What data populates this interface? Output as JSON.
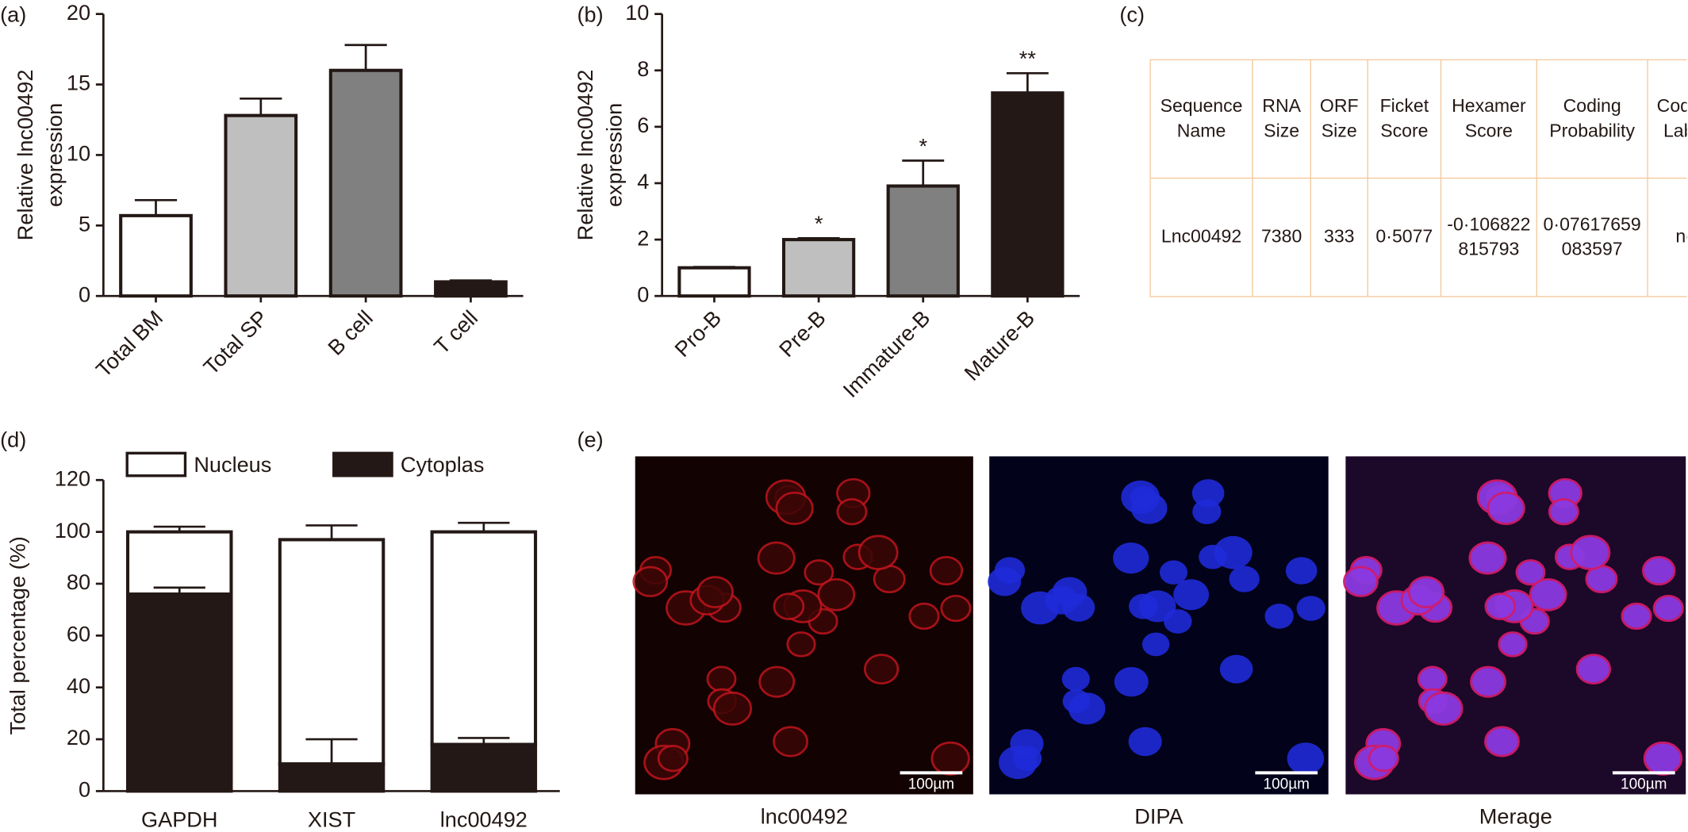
{
  "chart_data": [
    {
      "type": "bar",
      "panel": "(a)",
      "y_label": [
        "Relative lnc00492",
        "expression"
      ],
      "categories": [
        "Total BM",
        "Total SP",
        "B cell",
        "T cell"
      ],
      "values": [
        5.7,
        12.8,
        16,
        1.0
      ],
      "errors": [
        1.1,
        1.2,
        1.8,
        0.1
      ],
      "colors": [
        "#ffffff",
        "#bfbfbf",
        "#808080",
        "#231815"
      ],
      "ylim": [
        0,
        20
      ],
      "yticks": [
        0,
        5,
        10,
        15,
        20
      ]
    },
    {
      "type": "bar",
      "panel": "(b)",
      "y_label": [
        "Relative lnc00492",
        "expression"
      ],
      "categories": [
        "Pro-B",
        "Pre-B",
        "Immature-B",
        "Mature-B"
      ],
      "values": [
        1.0,
        2.0,
        3.9,
        7.2
      ],
      "errors": [
        0.03,
        0.05,
        0.9,
        0.7
      ],
      "annotations": [
        null,
        "*",
        "*",
        "**"
      ],
      "colors": [
        "#ffffff",
        "#bfbfbf",
        "#808080",
        "#231815"
      ],
      "ylim": [
        0,
        10
      ],
      "yticks": [
        0,
        2,
        4,
        6,
        8,
        10
      ]
    },
    {
      "type": "stacked_bar",
      "panel": "(d)",
      "y_label": "Total percentage (%)",
      "categories": [
        "GAPDH",
        "XIST",
        "lnc00492"
      ],
      "series": [
        {
          "name": "Cytoplas",
          "color": "#231815",
          "values": [
            76,
            10.5,
            18
          ],
          "errors": [
            2.5,
            9.5,
            2.5
          ]
        },
        {
          "name": "Nucleus",
          "color": "#ffffff",
          "values": [
            24,
            86.5,
            82
          ],
          "errors": [
            2,
            5.5,
            3.5
          ]
        }
      ],
      "ylim": [
        0,
        120
      ],
      "yticks": [
        0,
        20,
        40,
        60,
        80,
        100,
        120
      ]
    }
  ],
  "table": {
    "panel": "(c)",
    "header": [
      "Sequence Name",
      "RNA Size",
      "ORF Size",
      "Ficket Score",
      "Hexamer Score",
      "Coding Probability",
      "Coding Label"
    ],
    "rows": [
      [
        "Lnc00492",
        "7380",
        "333",
        "0·5077",
        "-0·106822815793",
        "0·07617659083597",
        "no"
      ]
    ]
  },
  "micrographs": {
    "panel": "(e)",
    "captions": [
      "lnc00492",
      "DIPA",
      "Merage"
    ],
    "scale_bar": "100µm"
  }
}
